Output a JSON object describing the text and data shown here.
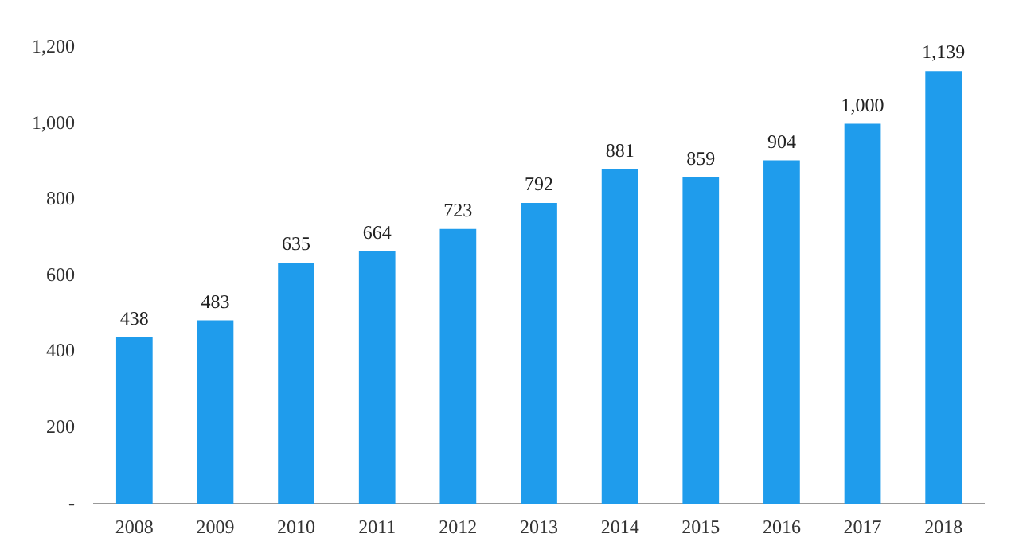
{
  "chart_data": {
    "type": "bar",
    "categories": [
      "2008",
      "2009",
      "2010",
      "2011",
      "2012",
      "2013",
      "2014",
      "2015",
      "2016",
      "2017",
      "2018"
    ],
    "values": [
      438,
      483,
      635,
      664,
      723,
      792,
      881,
      859,
      904,
      1000,
      1139
    ],
    "value_labels": [
      "438",
      "483",
      "635",
      "664",
      "723",
      "792",
      "881",
      "859",
      "904",
      "1,000",
      "1,139"
    ],
    "color": "#1f9cec",
    "ylim": [
      0,
      1200
    ],
    "yticks": [
      {
        "value": 0,
        "label": "-"
      },
      200,
      400,
      600,
      800,
      {
        "value": 1000,
        "label": "1,000"
      },
      {
        "value": 1200,
        "label": "1,200"
      }
    ],
    "grid": false,
    "legend": false
  }
}
